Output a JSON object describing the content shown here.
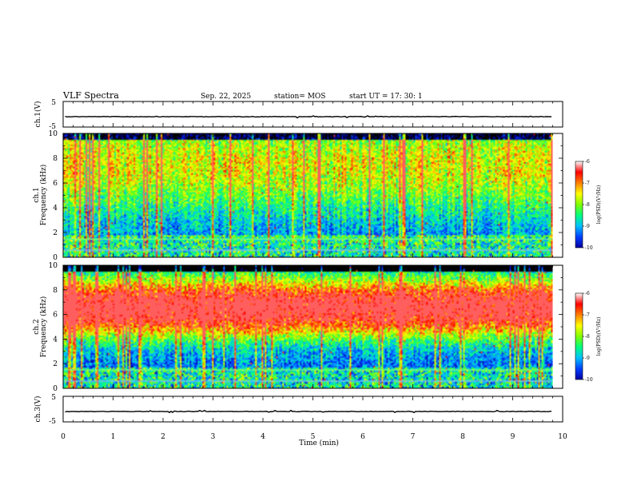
{
  "header": {
    "title": "VLF Spectra",
    "date": "Sep. 22, 2025",
    "station": "station= MOS",
    "start": "start  UT =   17: 30: 1"
  },
  "colors": {
    "spectrogram_scale": [
      "#000000",
      "#0000a0",
      "#0040ff",
      "#00c0ff",
      "#00ff80",
      "#80ff00",
      "#ffff00",
      "#ff8000",
      "#ff0000",
      "#ffffff"
    ],
    "trace": "#000000"
  },
  "chart_data": [
    {
      "type": "line",
      "name_label": "ch.1(V)",
      "ylabel": "ch.1(V)",
      "ylim": [
        -5,
        5
      ],
      "yticks": [
        "5",
        "-5"
      ],
      "x_range_min": [
        0,
        10
      ],
      "approx_value_V": 0
    },
    {
      "type": "heatmap",
      "ylabel": "ch.1\nFrequency (kHz)",
      "ylabel_line1": "ch.1",
      "ylabel_line2": "Frequency (kHz)",
      "ylim": [
        0,
        10
      ],
      "yticks": [
        "0",
        "2",
        "4",
        "6",
        "8",
        "10"
      ],
      "x_range_min": [
        0,
        10
      ],
      "data_extent_min": 9.8,
      "colorbar": {
        "label": "log(PSD)(V²/Hz)",
        "ticks": [
          "-6",
          "-7",
          "-8",
          "-9",
          "-10"
        ],
        "range": [
          -10,
          -6
        ]
      },
      "band_center_kHz": 7.5,
      "band_halfwidth_kHz": 4.0,
      "band_strength": 0.3
    },
    {
      "type": "heatmap",
      "ylabel": "ch.2\nFrequency (kHz)",
      "ylabel_line1": "ch.2",
      "ylabel_line2": "Frequency (kHz)",
      "ylim": [
        0,
        10
      ],
      "yticks": [
        "0",
        "2",
        "4",
        "6",
        "8",
        "10"
      ],
      "x_range_min": [
        0,
        10
      ],
      "data_extent_min": 9.8,
      "colorbar": {
        "label": "log(PSD)(V²/Hz)",
        "ticks": [
          "-6",
          "-7",
          "-8",
          "-9",
          "-10"
        ],
        "range": [
          -10,
          -6
        ]
      },
      "band_center_kHz": 6.6,
      "band_halfwidth_kHz": 2.4,
      "band_strength": 0.75
    },
    {
      "type": "line",
      "name_label": "ch.3(V)",
      "ylabel": "ch.3(V)",
      "ylim": [
        -5,
        5
      ],
      "yticks": [
        "5",
        "-5"
      ],
      "x_range_min": [
        0,
        10
      ],
      "approx_value_V": 0
    }
  ],
  "xaxis": {
    "label": "Time  (min)",
    "ticks": [
      "0",
      "1",
      "2",
      "3",
      "4",
      "5",
      "6",
      "7",
      "8",
      "9",
      "10"
    ]
  }
}
